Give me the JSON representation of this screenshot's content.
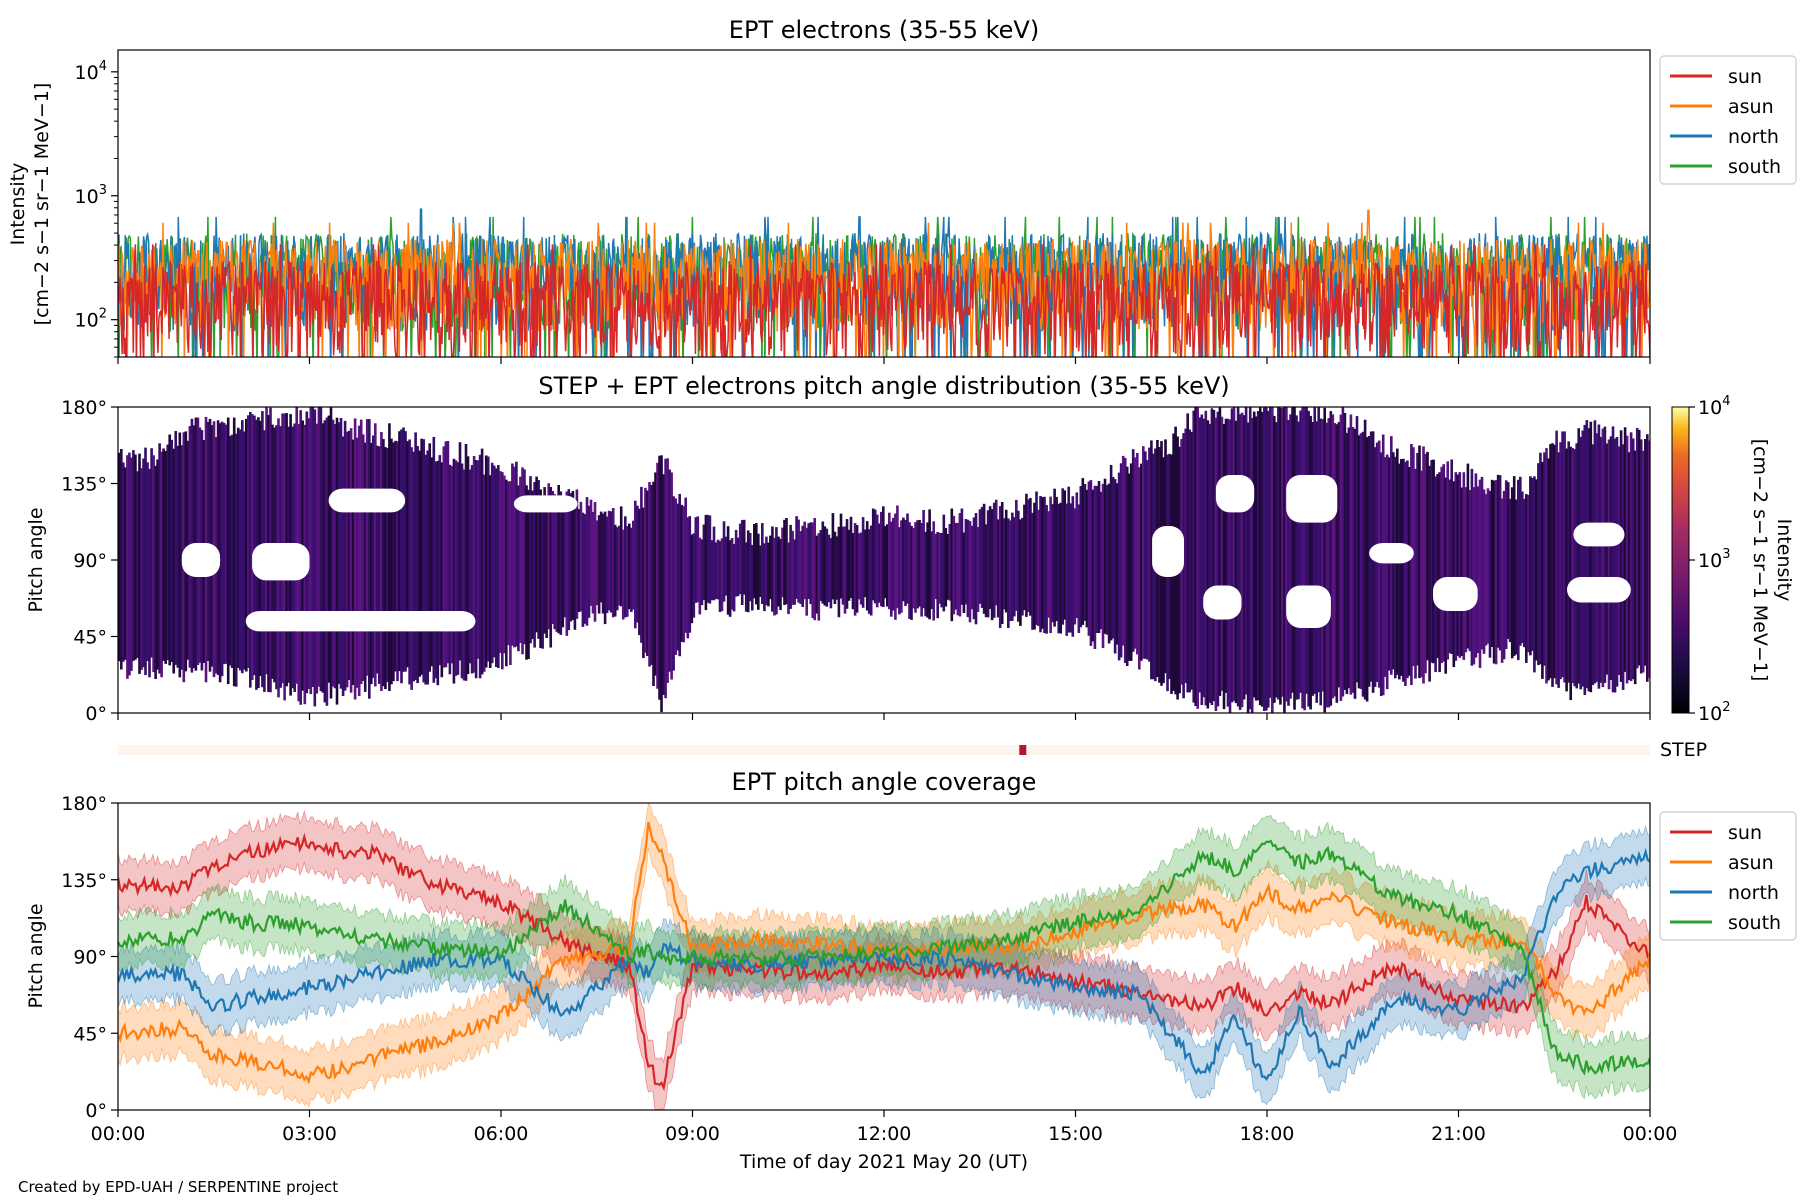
{
  "chart_data": [
    {
      "type": "line",
      "title": "EPT electrons (35-55 keV)",
      "ylabel_line1": "Intensity",
      "ylabel_line2": "[cm−2 s−1 sr−1 MeV−1]",
      "yscale": "log",
      "ylim": [
        50,
        15000
      ],
      "y_ticks": [
        "10^2",
        "10^3",
        "10^4"
      ],
      "xlim": [
        "00:00",
        "24:00"
      ],
      "legend_position": "upper right, outside axes",
      "series": [
        {
          "name": "sun",
          "color": "#d62728",
          "typical_range": [
            50,
            300
          ]
        },
        {
          "name": "asun",
          "color": "#ff7f0e",
          "typical_range": [
            80,
            450
          ]
        },
        {
          "name": "north",
          "color": "#1f77b4",
          "typical_range": [
            80,
            500
          ]
        },
        {
          "name": "south",
          "color": "#2ca02c",
          "typical_range": [
            80,
            500
          ]
        }
      ],
      "notable_peaks": [
        {
          "series": "north",
          "time": "04:45",
          "value": 780
        },
        {
          "series": "asun",
          "time": "19:35",
          "value": 760
        }
      ]
    },
    {
      "type": "heatmap",
      "title": "STEP + EPT electrons pitch angle distribution (35-55 keV)",
      "ylabel": "Pitch angle",
      "ylim": [
        0,
        180
      ],
      "y_ticks": [
        "0°",
        "45°",
        "90°",
        "135°",
        "180°"
      ],
      "colorbar": {
        "label_line1": "Intensity",
        "label_line2": "[cm−2 s−1 sr−1 MeV−1]",
        "scale": "log",
        "range": [
          100,
          10000
        ],
        "ticks": [
          "10^2",
          "10^3",
          "10^4"
        ],
        "colormap": "inferno"
      },
      "coverage_band_hours": [
        [
          0.0,
          148,
          27
        ],
        [
          0.5,
          150,
          27
        ],
        [
          1.0,
          165,
          25
        ],
        [
          1.5,
          170,
          24
        ],
        [
          2.0,
          172,
          20
        ],
        [
          2.5,
          175,
          15
        ],
        [
          3.0,
          178,
          10
        ],
        [
          3.5,
          170,
          12
        ],
        [
          4.0,
          165,
          16
        ],
        [
          4.5,
          162,
          20
        ],
        [
          5.0,
          155,
          23
        ],
        [
          5.5,
          150,
          25
        ],
        [
          6.0,
          145,
          32
        ],
        [
          6.5,
          135,
          40
        ],
        [
          7.0,
          128,
          50
        ],
        [
          7.5,
          118,
          58
        ],
        [
          8.0,
          112,
          62
        ],
        [
          8.5,
          150,
          5
        ],
        [
          9.0,
          110,
          60
        ],
        [
          10.0,
          105,
          65
        ],
        [
          11.0,
          110,
          60
        ],
        [
          12.0,
          115,
          62
        ],
        [
          13.0,
          112,
          60
        ],
        [
          14.0,
          120,
          55
        ],
        [
          15.0,
          128,
          50
        ],
        [
          15.5,
          140,
          40
        ],
        [
          16.0,
          150,
          30
        ],
        [
          16.5,
          160,
          15
        ],
        [
          17.0,
          178,
          8
        ],
        [
          17.5,
          178,
          5
        ],
        [
          18.0,
          178,
          5
        ],
        [
          18.5,
          178,
          5
        ],
        [
          19.0,
          178,
          8
        ],
        [
          19.5,
          165,
          12
        ],
        [
          20.0,
          155,
          20
        ],
        [
          20.5,
          148,
          25
        ],
        [
          21.0,
          140,
          30
        ],
        [
          21.5,
          135,
          35
        ],
        [
          22.0,
          132,
          38
        ],
        [
          22.5,
          158,
          15
        ],
        [
          23.0,
          165,
          12
        ],
        [
          23.5,
          162,
          18
        ],
        [
          24.0,
          160,
          25
        ]
      ],
      "step_strip": {
        "label": "STEP",
        "marker_time": "14:10"
      }
    },
    {
      "type": "line",
      "title": "EPT pitch angle coverage",
      "ylabel": "Pitch angle",
      "xlabel": "Time of day 2021 May 20 (UT)",
      "ylim": [
        0,
        180
      ],
      "y_ticks": [
        "0°",
        "45°",
        "90°",
        "135°",
        "180°"
      ],
      "x_ticks": [
        "00:00",
        "03:00",
        "06:00",
        "09:00",
        "12:00",
        "15:00",
        "18:00",
        "21:00",
        "00:00"
      ],
      "legend_position": "upper right, outside axes",
      "band_half_width_deg": 15,
      "series": [
        {
          "name": "sun",
          "color": "#d62728",
          "x": [
            0,
            1,
            1.5,
            2,
            3,
            3.5,
            4,
            5,
            6,
            7,
            8,
            8.3,
            8.5,
            9,
            10,
            11,
            12,
            13,
            14,
            15,
            16,
            17,
            17.5,
            18,
            18.5,
            19,
            20,
            21,
            22,
            22.5,
            23,
            24
          ],
          "y": [
            133,
            130,
            142,
            150,
            158,
            152,
            150,
            132,
            122,
            98,
            85,
            30,
            10,
            85,
            82,
            80,
            85,
            80,
            85,
            75,
            70,
            60,
            72,
            58,
            70,
            62,
            85,
            65,
            60,
            80,
            122,
            90
          ]
        },
        {
          "name": "asun",
          "color": "#ff7f0e",
          "x": [
            0,
            1,
            1.5,
            2,
            3,
            3.5,
            4,
            5,
            6,
            7,
            8,
            8.3,
            8.5,
            9,
            10,
            11,
            12,
            13,
            14,
            15,
            16,
            17,
            17.5,
            18,
            18.5,
            19,
            20,
            21,
            22,
            22.5,
            23,
            24
          ],
          "y": [
            45,
            48,
            32,
            30,
            20,
            25,
            30,
            40,
            55,
            88,
            95,
            165,
            150,
            95,
            100,
            98,
            92,
            95,
            95,
            105,
            115,
            120,
            108,
            128,
            118,
            125,
            110,
            100,
            98,
            70,
            55,
            90
          ]
        },
        {
          "name": "north",
          "color": "#1f77b4",
          "x": [
            0,
            1,
            1.5,
            2,
            3,
            3.5,
            4,
            5,
            6,
            7,
            8,
            8.3,
            8.5,
            9,
            10,
            11,
            12,
            13,
            14,
            15,
            16,
            17,
            17.5,
            18,
            18.5,
            19,
            20,
            21,
            22,
            22.5,
            23,
            24
          ],
          "y": [
            78,
            80,
            60,
            65,
            72,
            75,
            80,
            88,
            88,
            55,
            88,
            80,
            95,
            88,
            85,
            88,
            90,
            88,
            80,
            72,
            68,
            20,
            55,
            15,
            58,
            25,
            65,
            58,
            78,
            125,
            140,
            148
          ]
        },
        {
          "name": "south",
          "color": "#2ca02c",
          "x": [
            0,
            1,
            1.5,
            2,
            3,
            3.5,
            4,
            5,
            6,
            7,
            8,
            8.3,
            8.5,
            9,
            10,
            11,
            12,
            13,
            14,
            15,
            16,
            17,
            17.5,
            18,
            18.5,
            19,
            20,
            21,
            22,
            22.5,
            23,
            24
          ],
          "y": [
            100,
            100,
            115,
            110,
            108,
            102,
            100,
            95,
            92,
            120,
            90,
            95,
            88,
            90,
            88,
            90,
            92,
            95,
            100,
            110,
            115,
            150,
            140,
            160,
            145,
            150,
            125,
            115,
            95,
            35,
            25,
            30
          ]
        }
      ]
    }
  ],
  "footer": {
    "credit": "Created by EPD-UAH / SERPENTINE project"
  }
}
